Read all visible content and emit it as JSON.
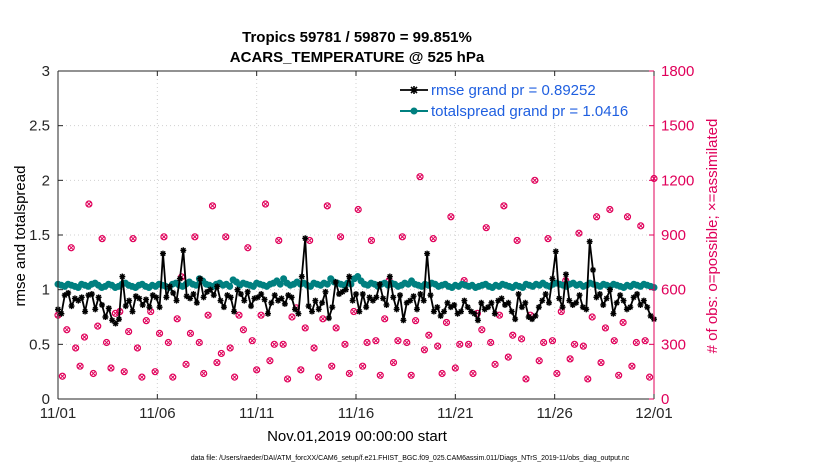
{
  "chart_data": {
    "type": "line",
    "title_line1": "Tropics 59781 / 59870 = 99.851%",
    "title_line2": "ACARS_TEMPERATURE @ 525 hPa",
    "xlabel": "Nov.01,2019 00:00:00 start",
    "ylabel_left": "rmse and totalspread",
    "ylabel_right": "# of obs: o=possible; ×=assimilated",
    "footnote": "data file: /Users/raeder/DAI/ATM_forcXX/CAM6_setup/f.e21.FHIST_BGC.f09_025.CAM6assim.011/Diags_NTrS_2019-11/obs_diag_output.nc",
    "x_ticks": [
      "11/01",
      "11/06",
      "11/11",
      "11/16",
      "11/21",
      "11/26",
      "12/01"
    ],
    "x_tick_days": [
      0,
      5,
      10,
      15,
      20,
      25,
      30
    ],
    "y_left_ticks": [
      "0",
      "0.5",
      "1",
      "1.5",
      "2",
      "2.5",
      "3"
    ],
    "y_left_range": [
      0,
      3
    ],
    "y_right_ticks": [
      "0",
      "300",
      "600",
      "900",
      "1200",
      "1500",
      "1800"
    ],
    "y_right_range": [
      0,
      1800
    ],
    "x_range": [
      0,
      30
    ],
    "series": [
      {
        "name": "rmse",
        "legend": "rmse grand pr = 0.89252",
        "color": "#000000",
        "axis": "left",
        "values": [
          0.82,
          0.78,
          0.95,
          0.97,
          0.85,
          0.92,
          0.9,
          0.93,
          0.8,
          0.95,
          0.96,
          0.82,
          0.93,
          0.86,
          0.75,
          0.83,
          0.72,
          0.69,
          0.73,
          1.12,
          0.85,
          0.9,
          0.8,
          0.94,
          0.92,
          0.86,
          0.91,
          0.84,
          0.95,
          0.93,
          0.84,
          1.33,
          0.93,
          1.03,
          0.97,
          0.9,
          1.1,
          1.36,
          0.94,
          0.92,
          0.96,
          0.88,
          1.1,
          0.93,
          0.98,
          1.0,
          0.95,
          1.03,
          0.9,
          0.84,
          0.95,
          0.93,
          0.8,
          1.0,
          0.96,
          0.9,
          0.98,
          0.85,
          0.92,
          0.93,
          0.96,
          0.91,
          0.78,
          0.88,
          0.95,
          0.9,
          0.92,
          0.87,
          0.95,
          0.93,
          0.82,
          0.78,
          1.12,
          1.47,
          0.85,
          0.8,
          0.9,
          0.82,
          0.88,
          0.98,
          0.74,
          0.84,
          1.07,
          0.96,
          0.98,
          1.0,
          1.12,
          0.9,
          0.96,
          0.8,
          0.96,
          0.84,
          0.93,
          0.9,
          0.93,
          1.05,
          0.92,
          0.86,
          1.12,
          0.93,
          0.82,
          0.95,
          0.72,
          0.88,
          0.9,
          0.94,
          0.82,
          0.96,
          0.9,
          1.33,
          0.95,
          0.8,
          0.84,
          0.76,
          0.8,
          0.88,
          0.84,
          0.86,
          0.78,
          0.8,
          0.9,
          0.84,
          0.8,
          0.78,
          0.72,
          0.88,
          0.82,
          0.84,
          0.88,
          0.78,
          0.9,
          0.92,
          0.86,
          0.88,
          0.8,
          0.73,
          0.96,
          0.84,
          0.88,
          0.75,
          0.73,
          0.76,
          0.84,
          0.9,
          0.96,
          0.88,
          1.1,
          1.35,
          0.92,
          0.84,
          1.14,
          0.9,
          0.86,
          0.88,
          0.95,
          0.84,
          0.82,
          1.44,
          1.18,
          0.93,
          0.96,
          0.86,
          0.92,
          1.0,
          0.78,
          0.88,
          0.95,
          0.9,
          0.82,
          0.84,
          0.93,
          0.96,
          0.86,
          0.9,
          0.84,
          0.76,
          0.73
        ]
      },
      {
        "name": "totalspread",
        "legend": "totalspread grand pr = 1.0416",
        "color": "#008080",
        "axis": "left",
        "values": [
          1.05,
          1.04,
          1.03,
          1.05,
          1.04,
          1.03,
          1.02,
          1.05,
          1.04,
          1.03,
          1.05,
          1.06,
          1.04,
          1.02,
          1.03,
          1.05,
          1.04,
          1.02,
          1.03,
          1.05,
          1.06,
          1.04,
          1.03,
          1.02,
          1.04,
          1.05,
          1.03,
          1.02,
          1.04,
          1.03,
          1.05,
          1.04,
          1.03,
          1.02,
          1.05,
          1.06,
          1.04,
          1.03,
          1.05,
          1.07,
          1.05,
          1.04,
          1.1,
          1.08,
          1.05,
          1.04,
          1.03,
          1.05,
          1.06,
          1.04,
          1.05,
          1.03,
          1.09,
          1.07,
          1.04,
          1.06,
          1.05,
          1.04,
          1.03,
          1.06,
          1.05,
          1.04,
          1.03,
          1.05,
          1.06,
          1.08,
          1.05,
          1.1,
          1.06,
          1.04,
          1.05,
          1.07,
          1.05,
          1.06,
          1.04,
          1.03,
          1.06,
          1.05,
          1.04,
          1.06,
          1.05,
          1.1,
          1.07,
          1.06,
          1.05,
          1.04,
          1.06,
          1.05,
          1.1,
          1.12,
          1.08,
          1.05,
          1.04,
          1.06,
          1.05,
          1.03,
          1.05,
          1.06,
          1.04,
          1.06,
          1.05,
          1.03,
          1.04,
          1.06,
          1.05,
          1.08,
          1.05,
          1.04,
          1.03,
          1.05,
          1.04,
          1.06,
          1.05,
          1.03,
          1.04,
          1.05,
          1.03,
          1.02,
          1.04,
          1.03,
          1.05,
          1.04,
          1.03,
          1.04,
          1.02,
          1.03,
          1.04,
          1.05,
          1.03,
          1.02,
          1.04,
          1.03,
          1.05,
          1.04,
          1.03,
          1.02,
          1.04,
          1.03,
          1.02,
          1.05,
          1.04,
          1.03,
          1.05,
          1.04,
          1.06,
          1.04,
          1.03,
          1.05,
          1.06,
          1.05,
          1.04,
          1.03,
          1.05,
          1.06,
          1.04,
          1.05,
          1.03,
          1.04,
          1.06,
          1.05,
          1.04,
          1.03,
          1.05,
          1.04,
          1.03,
          1.05,
          1.04,
          1.03,
          1.02,
          1.04,
          1.03,
          1.05,
          1.04,
          1.03,
          1.05,
          1.04,
          1.03,
          1.02
        ]
      },
      {
        "name": "obs_possible",
        "legend": "",
        "color": "#e0005a",
        "axis": "right",
        "marker": "circle",
        "values": [
          460,
          125,
          380,
          830,
          280,
          180,
          340,
          1070,
          140,
          400,
          880,
          310,
          170,
          470,
          480,
          150,
          370,
          880,
          280,
          120,
          430,
          480,
          150,
          360,
          890,
          310,
          120,
          440,
          670,
          190,
          360,
          890,
          310,
          140,
          460,
          1060,
          200,
          250,
          890,
          280,
          120,
          460,
          380,
          830,
          320,
          160,
          460,
          1070,
          210,
          300,
          870,
          300,
          110,
          450,
          500,
          160,
          390,
          870,
          280,
          120,
          440,
          1060,
          180,
          390,
          890,
          300,
          140,
          480,
          1040,
          180,
          310,
          870,
          320,
          130,
          440,
          650,
          200,
          320,
          890,
          310,
          130,
          430,
          1220,
          270,
          350,
          880,
          290,
          140,
          420,
          1000,
          170,
          300,
          650,
          300,
          140,
          470,
          380,
          940,
          310,
          190,
          460,
          1060,
          230,
          350,
          870,
          330,
          110,
          460,
          1200,
          210,
          310,
          880,
          320,
          140,
          480,
          650,
          220,
          300,
          910,
          290,
          110,
          450,
          1000,
          200,
          390,
          1040,
          320,
          130,
          420,
          1000,
          180,
          310,
          950,
          320,
          120,
          1210
        ]
      }
    ]
  }
}
